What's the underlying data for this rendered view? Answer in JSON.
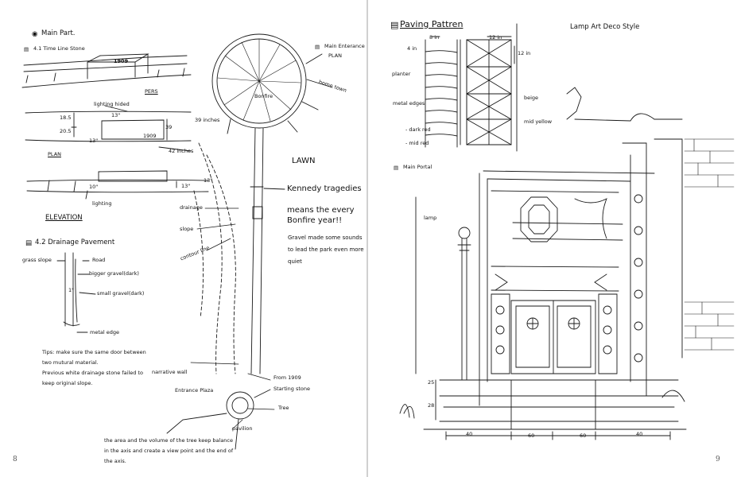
{
  "left": {
    "main_part": "Main Part.",
    "s41": "4.1  Time Line Stone",
    "stone_label": "1909",
    "pers": "PERS",
    "lighting_hided": "lighting hided",
    "d18_5": "18.5",
    "d20_5": "20.5",
    "d13a": "13\"",
    "d13b": "13\"",
    "d39": "39",
    "d39in": "39 inches",
    "d1909": "1909",
    "d42in": "42 inches",
    "plan": "PLAN",
    "d10": "10\"",
    "d13c": "13\"",
    "d13d": "13\"",
    "lighting": "lighting",
    "elevation": "ELEVATION",
    "s42": "4.2  Drainage Pavement",
    "grass_slope": "grass slope",
    "road": "Road",
    "bigger_gravel": "bigger gravel(dark)",
    "small_gravel": "small gravel(dark)",
    "one_in": "1\"",
    "metal_edge": "metal edge",
    "tips": [
      "Tips: make sure the same door between",
      "two mutural material.",
      "Previous white drainage stone failed to",
      "keep original slope."
    ],
    "main_entrance": "Main Enterance",
    "plan2": "PLAN",
    "home_town": "home town",
    "bonfire": "Bonfire",
    "lawn": "LAWN",
    "kennedy": "Kennedy tragedies",
    "means1": "means the every",
    "means2": "Bonfire year!!",
    "gravel": [
      "Gravel made some sounds",
      "to lead the park even more",
      "quiet"
    ],
    "drainage": "drainage",
    "slope": "slope",
    "contour": "contour line",
    "narrative_wall": "narrative wall",
    "from1909": "From 1909",
    "starting_stone": "Starting stone",
    "entrance_plaza": "Entrance Plaza",
    "tree": "Tree",
    "pavilion": "pavilion",
    "bottom": [
      "the area and the volume of the tree keep balance",
      "in the axis and create a view point and the end of",
      "the axis."
    ],
    "page_number": "8"
  },
  "right": {
    "paving": "Paving Pattren",
    "lamp_deco": "Lamp Art Deco Style",
    "d8in": "8 in",
    "d12in_a": "12 in",
    "d12in_b": "12 in",
    "d4in": "4 in",
    "planter": "planter",
    "beige": "beige",
    "metal_edges": "metal edges",
    "mid_yellow": "mid yellow",
    "dark_red": "- dark red",
    "mid_red": "- mid red",
    "main_portal": "Main Portal",
    "lamp": "lamp",
    "d25": "25",
    "d28": "28",
    "d40a": "40",
    "d60a": "60",
    "d60b": "60",
    "d40b": "40",
    "page_number": "9"
  }
}
